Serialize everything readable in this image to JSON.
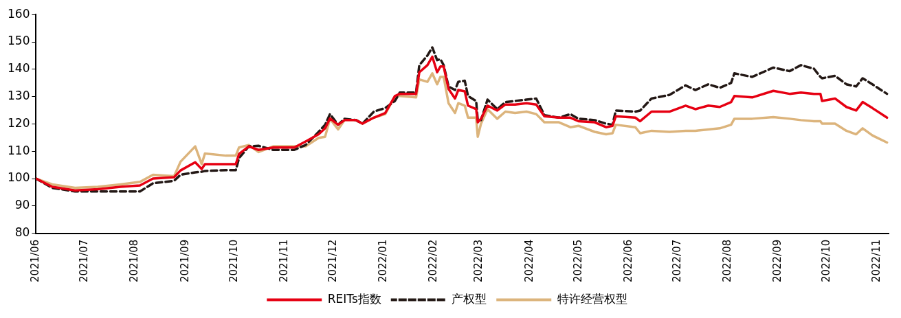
{
  "chart_data": {
    "type": "line",
    "ylim": [
      80,
      160
    ],
    "yticks": [
      80,
      90,
      100,
      110,
      120,
      130,
      140,
      150,
      160
    ],
    "xlim": [
      "2021-06-01",
      "2022-11-08"
    ],
    "xticks": [
      {
        "value": "2021-06-01",
        "label": "2021/06"
      },
      {
        "value": "2021-07-01",
        "label": "2021/07"
      },
      {
        "value": "2021-08-01",
        "label": "2021/08"
      },
      {
        "value": "2021-09-01",
        "label": "2021/09"
      },
      {
        "value": "2021-10-01",
        "label": "2021/10"
      },
      {
        "value": "2021-11-01",
        "label": "2021/11"
      },
      {
        "value": "2021-12-01",
        "label": "2021/12"
      },
      {
        "value": "2022-01-01",
        "label": "2022/01"
      },
      {
        "value": "2022-02-01",
        "label": "2022/02"
      },
      {
        "value": "2022-03-01",
        "label": "2022/03"
      },
      {
        "value": "2022-04-01",
        "label": "2022/04"
      },
      {
        "value": "2022-05-01",
        "label": "2022/05"
      },
      {
        "value": "2022-06-01",
        "label": "2022/06"
      },
      {
        "value": "2022-07-01",
        "label": "2022/07"
      },
      {
        "value": "2022-08-01",
        "label": "2022/08"
      },
      {
        "value": "2022-09-01",
        "label": "2022/09"
      },
      {
        "value": "2022-10-01",
        "label": "2022/10"
      },
      {
        "value": "2022-11-01",
        "label": "2022/11"
      }
    ],
    "x": [
      "2021-06-01",
      "2021-06-11",
      "2021-06-25",
      "2021-07-09",
      "2021-07-23",
      "2021-08-04",
      "2021-08-12",
      "2021-08-25",
      "2021-08-29",
      "2021-09-07",
      "2021-09-11",
      "2021-09-13",
      "2021-09-26",
      "2021-10-02",
      "2021-10-04",
      "2021-10-10",
      "2021-10-16",
      "2021-10-25",
      "2021-11-07",
      "2021-11-14",
      "2021-11-22",
      "2021-11-26",
      "2021-11-29",
      "2021-12-04",
      "2021-12-08",
      "2021-12-15",
      "2021-12-19",
      "2021-12-26",
      "2022-01-02",
      "2022-01-08",
      "2022-01-11",
      "2022-01-21",
      "2022-01-23",
      "2022-01-28",
      "2022-01-31",
      "2022-02-03",
      "2022-02-05",
      "2022-02-07",
      "2022-02-10",
      "2022-02-14",
      "2022-02-16",
      "2022-02-20",
      "2022-02-22",
      "2022-02-27",
      "2022-02-28",
      "2022-03-02",
      "2022-03-06",
      "2022-03-12",
      "2022-03-17",
      "2022-03-23",
      "2022-03-30",
      "2022-04-05",
      "2022-04-10",
      "2022-04-19",
      "2022-04-26",
      "2022-05-01",
      "2022-05-11",
      "2022-05-18",
      "2022-05-22",
      "2022-05-24",
      "2022-06-05",
      "2022-06-08",
      "2022-06-15",
      "2022-06-26",
      "2022-07-06",
      "2022-07-12",
      "2022-07-20",
      "2022-07-27",
      "2022-08-03",
      "2022-08-05",
      "2022-08-16",
      "2022-08-29",
      "2022-09-08",
      "2022-09-15",
      "2022-09-23",
      "2022-09-27",
      "2022-09-28",
      "2022-10-06",
      "2022-10-13",
      "2022-10-19",
      "2022-10-23",
      "2022-10-29",
      "2022-11-07"
    ],
    "series": [
      {
        "name": "REITs指数",
        "color": "#e60012",
        "line_style": "solid",
        "values": [
          100,
          97,
          95.7,
          96.1,
          97,
          97.5,
          100,
          100.5,
          103,
          106,
          103.5,
          105.3,
          105.3,
          105.3,
          109,
          111.8,
          110.5,
          111.4,
          111.4,
          113.6,
          116.2,
          118.4,
          122,
          119.7,
          121.4,
          121.4,
          120.1,
          122.3,
          124,
          130.2,
          131,
          131,
          138.9,
          141.5,
          144.6,
          138.9,
          141,
          141,
          132.8,
          129.3,
          132.4,
          131.9,
          126.7,
          125.4,
          120.6,
          121.9,
          126.7,
          124.9,
          127.1,
          127.1,
          127.6,
          127.1,
          122.8,
          122.3,
          122.3,
          121,
          120.6,
          118.8,
          119.3,
          122.8,
          122.3,
          121,
          124.5,
          124.5,
          126.7,
          125.4,
          126.7,
          126.2,
          128,
          130.2,
          129.7,
          132.1,
          131,
          131.5,
          131,
          131,
          128.4,
          129.3,
          126.2,
          124.9,
          128,
          125.8,
          122.3
        ]
      },
      {
        "name": "产权型",
        "color": "#231815",
        "line_style": "dashed",
        "values": [
          100,
          96.6,
          95.3,
          95.3,
          95.3,
          95.3,
          98.3,
          99.2,
          101.4,
          102.3,
          102.5,
          102.8,
          103.1,
          103.1,
          107.5,
          111.8,
          112,
          110.5,
          110.5,
          112.3,
          117.1,
          119.7,
          123.6,
          119.7,
          121.9,
          121.4,
          120.1,
          124.5,
          125.8,
          128.4,
          131.5,
          131.5,
          141.5,
          145,
          148,
          143.3,
          143.7,
          141.5,
          133.7,
          132.4,
          135.4,
          135.8,
          130.2,
          128.4,
          121.4,
          121.4,
          128.9,
          125.4,
          128,
          128.4,
          128.9,
          129.3,
          123.2,
          122.3,
          123.6,
          121.9,
          121.4,
          120.1,
          119.7,
          124.9,
          124.5,
          124.9,
          129.3,
          130.6,
          134.1,
          132.4,
          134.5,
          133.2,
          135,
          138.5,
          137.2,
          140.6,
          139.3,
          141.5,
          140.2,
          137.2,
          136.7,
          137.6,
          134.5,
          133.7,
          136.7,
          134.5,
          131
        ]
      },
      {
        "name": "特许经营权型",
        "color": "#dcb47c",
        "line_style": "solid",
        "values": [
          100,
          97.9,
          96.6,
          97,
          97.9,
          98.8,
          101.4,
          100.9,
          106.2,
          111.8,
          105.3,
          109.2,
          108.4,
          108.4,
          111.4,
          112.3,
          109.7,
          111.8,
          111.8,
          111.8,
          114.9,
          115.3,
          121.9,
          118,
          121.4,
          121.4,
          120.1,
          122.3,
          123.6,
          130.2,
          130.2,
          129.7,
          136.3,
          135.4,
          138.5,
          134.5,
          137.2,
          137.2,
          127.6,
          124,
          127.6,
          126.7,
          122.3,
          122.3,
          115.3,
          120.1,
          125.4,
          121.9,
          124.5,
          124,
          124.5,
          123.6,
          120.6,
          120.6,
          118.8,
          119.3,
          117.1,
          116.2,
          116.6,
          119.7,
          118.8,
          116.6,
          117.5,
          117.1,
          117.5,
          117.5,
          118,
          118.4,
          119.7,
          121.9,
          121.9,
          122.5,
          121.9,
          121.4,
          121,
          121,
          120.1,
          120.1,
          117.5,
          116.2,
          118.4,
          115.8,
          113.2
        ]
      }
    ],
    "grid": false,
    "legend": "bottom",
    "marker": "none"
  }
}
